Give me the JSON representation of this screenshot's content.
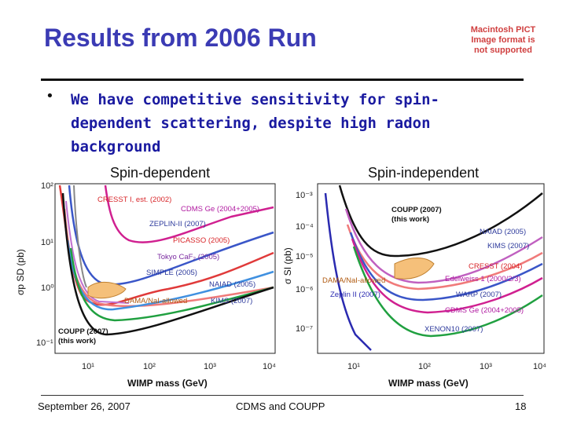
{
  "slide": {
    "title": "Results from 2006 Run",
    "pict_notice": "Macintosh PICT Image format is not supported",
    "bullet_marker": "•",
    "bullet_text": "We have competitive sensitivity for spin-dependent scattering, despite high radon background"
  },
  "left_plot": {
    "heading": "Spin-dependent",
    "ylabel": "σp SD (pb)",
    "xlabel": "WIMP mass (GeV)",
    "xticks": [
      "10¹",
      "10²",
      "10³",
      "10⁴"
    ],
    "yticks": [
      "10²",
      "10¹",
      "10⁰",
      "10⁻¹"
    ],
    "labels": {
      "cresst": "CRESST I, est. (2002)",
      "cdms": "CDMS Ge (2004+2005)",
      "zeplin": "ZEPLIN-II (2007)",
      "picasso": "PICASSO (2005)",
      "tokyo": "Tokyo CaF₂ (2005)",
      "simple": "SIMPLE (2005)",
      "naiad": "NAIAD (2005)",
      "dama": "DAMA/NaI-allowed",
      "kims": "KIMS (2007)",
      "coupp": "COUPP (2007)",
      "coupp_sub": "(this work)"
    }
  },
  "right_plot": {
    "heading": "Spin-independent",
    "ylabel": "σ SI (pb)",
    "xlabel": "WIMP mass (GeV)",
    "xticks": [
      "10¹",
      "10²",
      "10³",
      "10⁴"
    ],
    "yticks": [
      "10⁻³",
      "10⁻⁴",
      "10⁻⁵",
      "10⁻⁶",
      "10⁻⁷"
    ],
    "labels": {
      "coupp": "COUPP (2007)",
      "coupp_sub": "(this work)",
      "naiad": "NAIAD (2005)",
      "kims": "KIMS (2007)",
      "cresst": "CRESST (2004)",
      "dama": "DAMA/NaI-allowed",
      "edelweiss": "Edelweiss 1 (2000/2/3)",
      "zeplin": "Zeplin II (2007)",
      "warp": "WARP (2007)",
      "cdms": "CDMS Ge (2004+2005)",
      "xenon": "XENON10 (2007)"
    }
  },
  "footer": {
    "date": "September 26, 2007",
    "center": "CDMS and COUPP",
    "page": "18"
  },
  "colors": {
    "title": "#3b3bb4",
    "bullet_text": "#1a1aa0",
    "label_blue": "#2d3a9c",
    "label_red": "#d8262a",
    "label_magenta": "#b01aa0",
    "dama_fill": "#f5c07a"
  }
}
